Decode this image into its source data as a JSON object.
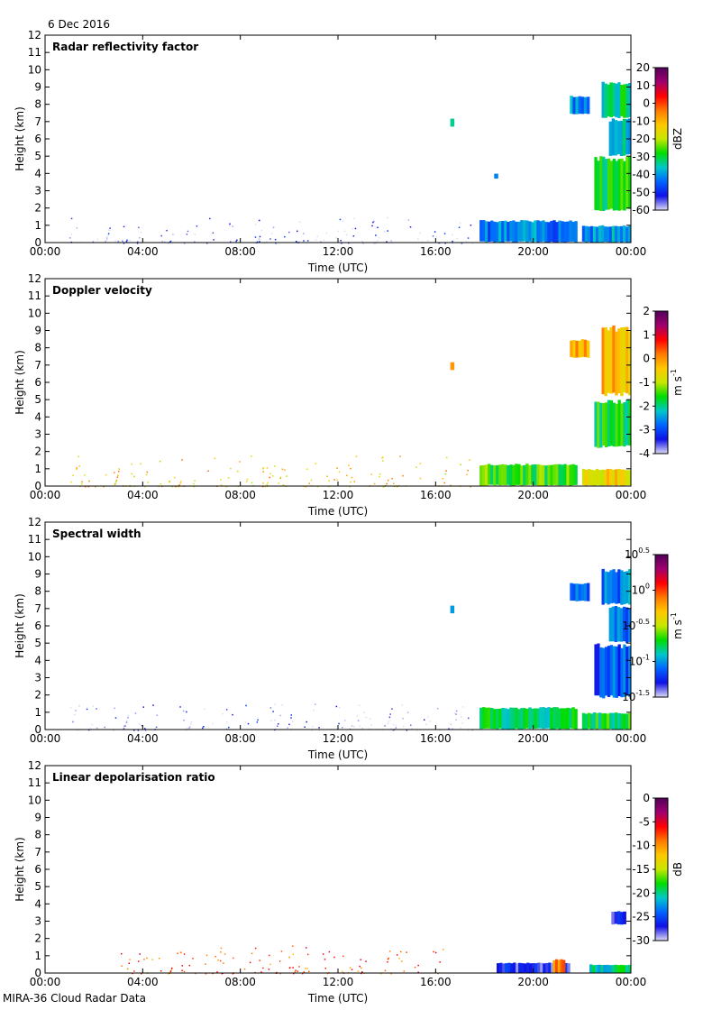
{
  "header": {
    "date": "6 Dec 2016"
  },
  "footer": {
    "label": "MIRA-36 Cloud Radar Data"
  },
  "axes": {
    "xlabel": "Time (UTC)",
    "ylabel": "Height (km)",
    "xticks": [
      "00:00",
      "04:00",
      "08:00",
      "12:00",
      "16:00",
      "20:00",
      "00:00"
    ],
    "yticks": [
      "0",
      "1",
      "2",
      "3",
      "4",
      "5",
      "6",
      "7",
      "8",
      "9",
      "10",
      "11",
      "12"
    ],
    "xlim_hours": [
      0,
      24
    ],
    "ylim_km": [
      0,
      12
    ]
  },
  "colormap": [
    "#dcdcf5",
    "#1010e6",
    "#0064ff",
    "#00c8c8",
    "#00dc00",
    "#c8e600",
    "#ffc800",
    "#ff7800",
    "#ff0000",
    "#a0006e",
    "#50005a"
  ],
  "chart_data": [
    {
      "type": "heatmap",
      "title": "Radar reflectivity factor",
      "xlabel": "Time (UTC)",
      "ylabel": "Height (km)",
      "units": "dBZ",
      "colorbar_ticks": [
        "20",
        "10",
        "0",
        "-10",
        "-20",
        "-30",
        "-40",
        "-50",
        "-60"
      ],
      "colorbar_range": [
        -60,
        20
      ],
      "regions": [
        {
          "t0": 22.8,
          "t1": 24.0,
          "h0": 7.2,
          "h1": 9.3,
          "value": -33
        },
        {
          "t0": 23.1,
          "t1": 24.0,
          "h0": 5.0,
          "h1": 7.2,
          "value": -35
        },
        {
          "t0": 22.5,
          "t1": 24.0,
          "h0": 1.8,
          "h1": 5.0,
          "value": -30
        },
        {
          "t0": 21.5,
          "t1": 22.3,
          "h0": 7.4,
          "h1": 8.5,
          "value": -40
        },
        {
          "t0": 17.8,
          "t1": 21.8,
          "h0": 0.0,
          "h1": 1.3,
          "value": -42
        },
        {
          "t0": 22.0,
          "t1": 24.0,
          "h0": 0.0,
          "h1": 1.0,
          "value": -40
        },
        {
          "t0": 16.6,
          "t1": 16.75,
          "h0": 6.7,
          "h1": 7.2,
          "value": -38
        },
        {
          "t0": 18.4,
          "t1": 18.55,
          "h0": 3.7,
          "h1": 4.0,
          "value": -42
        },
        {
          "t0": 1.0,
          "t1": 17.5,
          "h0": 0.0,
          "h1": 1.5,
          "value": -56,
          "sparse": true
        }
      ]
    },
    {
      "type": "heatmap",
      "title": "Doppler velocity",
      "xlabel": "Time (UTC)",
      "ylabel": "Height (km)",
      "units": "m s-1",
      "colorbar_ticks": [
        "2",
        "1",
        "0",
        "-1",
        "-2",
        "-3",
        "-4"
      ],
      "colorbar_range": [
        -4,
        2
      ],
      "regions": [
        {
          "t0": 22.8,
          "t1": 24.0,
          "h0": 5.2,
          "h1": 9.3,
          "value": -0.3
        },
        {
          "t0": 22.5,
          "t1": 24.0,
          "h0": 2.2,
          "h1": 5.0,
          "value": -1.7
        },
        {
          "t0": 21.5,
          "t1": 22.3,
          "h0": 7.4,
          "h1": 8.5,
          "value": -0.2
        },
        {
          "t0": 17.8,
          "t1": 21.8,
          "h0": 0.0,
          "h1": 1.3,
          "value": -1.5
        },
        {
          "t0": 22.0,
          "t1": 24.0,
          "h0": 0.0,
          "h1": 1.0,
          "value": -0.6
        },
        {
          "t0": 16.6,
          "t1": 16.75,
          "h0": 6.7,
          "h1": 7.2,
          "value": -0.3
        },
        {
          "t0": 1.0,
          "t1": 17.5,
          "h0": 0.0,
          "h1": 1.8,
          "value": -0.4,
          "sparse": true
        }
      ]
    },
    {
      "type": "heatmap",
      "title": "Spectral width",
      "xlabel": "Time (UTC)",
      "ylabel": "Height (km)",
      "units": "m s-1",
      "colorbar_ticks": [
        "10^0.5",
        "10^0",
        "10^-0.5",
        "10^-1",
        "10^-1.5"
      ],
      "colorbar_range": [
        -1.5,
        0.5
      ],
      "regions": [
        {
          "t0": 22.8,
          "t1": 24.0,
          "h0": 7.2,
          "h1": 9.3,
          "value": -1.05
        },
        {
          "t0": 23.1,
          "t1": 24.0,
          "h0": 5.0,
          "h1": 7.2,
          "value": -1.1
        },
        {
          "t0": 22.5,
          "t1": 24.0,
          "h0": 1.8,
          "h1": 5.0,
          "value": -1.15
        },
        {
          "t0": 21.5,
          "t1": 22.3,
          "h0": 7.4,
          "h1": 8.5,
          "value": -1.1
        },
        {
          "t0": 17.8,
          "t1": 21.8,
          "h0": 0.0,
          "h1": 1.3,
          "value": -0.8
        },
        {
          "t0": 22.0,
          "t1": 24.0,
          "h0": 0.0,
          "h1": 1.0,
          "value": -0.75
        },
        {
          "t0": 16.6,
          "t1": 16.75,
          "h0": 6.7,
          "h1": 7.2,
          "value": -1.1
        },
        {
          "t0": 1.0,
          "t1": 17.5,
          "h0": 0.0,
          "h1": 1.5,
          "value": -1.45,
          "sparse": true
        }
      ]
    },
    {
      "type": "heatmap",
      "title": "Linear depolarisation ratio",
      "xlabel": "Time (UTC)",
      "ylabel": "Height (km)",
      "units": "dB",
      "colorbar_ticks": [
        "0",
        "-5",
        "-10",
        "-15",
        "-20",
        "-25",
        "-30"
      ],
      "colorbar_range": [
        -30,
        0
      ],
      "regions": [
        {
          "t0": 18.5,
          "t1": 21.5,
          "h0": 0.0,
          "h1": 0.6,
          "value": -27
        },
        {
          "t0": 20.8,
          "t1": 21.3,
          "h0": 0.0,
          "h1": 0.8,
          "value": -10
        },
        {
          "t0": 22.3,
          "t1": 24.0,
          "h0": 0.0,
          "h1": 0.5,
          "value": -20
        },
        {
          "t0": 23.2,
          "t1": 23.8,
          "h0": 2.8,
          "h1": 3.6,
          "value": -27
        },
        {
          "t0": 3.0,
          "t1": 16.5,
          "h0": 0.0,
          "h1": 1.6,
          "value": -8,
          "sparse": true
        }
      ]
    }
  ]
}
